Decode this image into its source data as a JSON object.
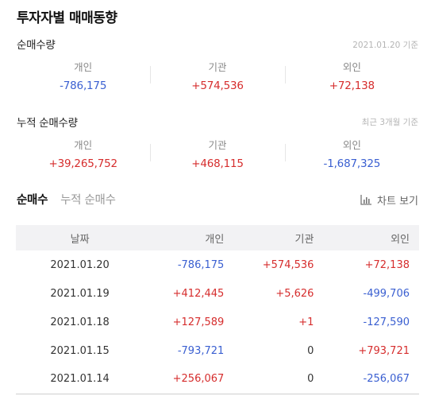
{
  "title": "투자자별 매매동향",
  "net": {
    "title": "순매수량",
    "note": "2021.01.20 기준",
    "items": [
      {
        "label": "개인",
        "value": "-786,175"
      },
      {
        "label": "기관",
        "value": "+574,536"
      },
      {
        "label": "외인",
        "value": "+72,138"
      }
    ]
  },
  "cumulative": {
    "title": "누적 순매수량",
    "note": "최근 3개월 기준",
    "items": [
      {
        "label": "개인",
        "value": "+39,265,752"
      },
      {
        "label": "기관",
        "value": "+468,115"
      },
      {
        "label": "외인",
        "value": "-1,687,325"
      }
    ]
  },
  "tabs": [
    "순매수",
    "누적 순매수"
  ],
  "chart_view_label": "차트 보기",
  "table": {
    "headers": [
      "날짜",
      "개인",
      "기관",
      "외인"
    ],
    "rows": [
      [
        "2021.01.20",
        "-786,175",
        "+574,536",
        "+72,138"
      ],
      [
        "2021.01.19",
        "+412,445",
        "+5,626",
        "-499,706"
      ],
      [
        "2021.01.18",
        "+127,589",
        "+1",
        "-127,590"
      ],
      [
        "2021.01.15",
        "-793,721",
        "0",
        "+793,721"
      ],
      [
        "2021.01.14",
        "+256,067",
        "0",
        "-256,067"
      ]
    ]
  },
  "colors": {
    "up": "#d62d2d",
    "down": "#3a5fd1"
  },
  "icons": {
    "chart_view": "bar-chart-icon"
  }
}
